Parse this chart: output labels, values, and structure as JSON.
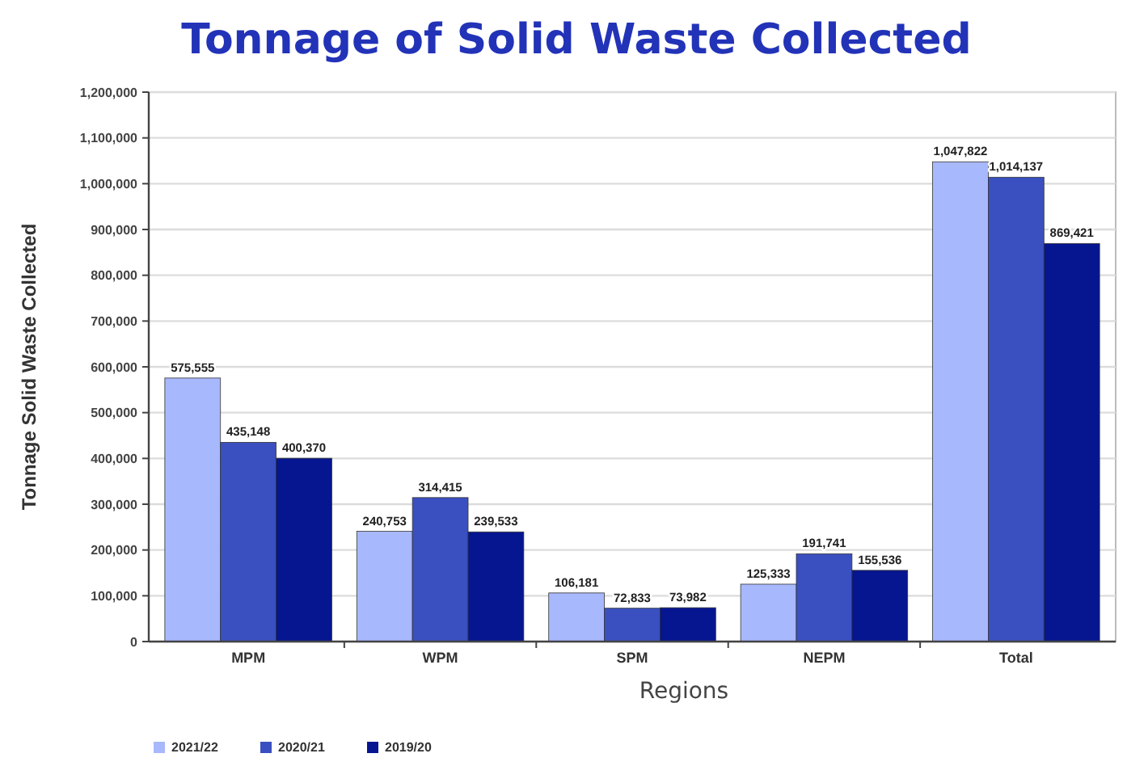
{
  "chart_data": {
    "type": "bar",
    "title": "Tonnage of Solid Waste Collected",
    "xlabel": "Regions",
    "ylabel": "Tonnage Solid Waste Collected",
    "categories": [
      "MPM",
      "WPM",
      "SPM",
      "NEPM",
      "Total"
    ],
    "series": [
      {
        "name": "2021/22",
        "color": "#a8b8fc",
        "values": [
          575555,
          240753,
          106181,
          125333,
          1047822
        ],
        "value_labels": [
          "575,555",
          "240,753",
          "106,181",
          "125,333",
          "1,047,822"
        ]
      },
      {
        "name": "2020/21",
        "color": "#3a50c0",
        "values": [
          435148,
          314415,
          72833,
          191741,
          1014137
        ],
        "value_labels": [
          "435,148",
          "314,415",
          "72,833",
          "191,741",
          "1,014,137"
        ]
      },
      {
        "name": "2019/20",
        "color": "#061590",
        "values": [
          400370,
          239533,
          73982,
          155536,
          869421
        ],
        "value_labels": [
          "400,370",
          "239,533",
          "73,982",
          "155,536",
          "869,421"
        ]
      }
    ],
    "ylim": [
      0,
      1200000
    ],
    "yticks": [
      {
        "value": 0,
        "label": "0"
      },
      {
        "value": 100000,
        "label": "100,000"
      },
      {
        "value": 200000,
        "label": "200,000"
      },
      {
        "value": 300000,
        "label": "300,000"
      },
      {
        "value": 400000,
        "label": "400,000"
      },
      {
        "value": 500000,
        "label": "500,000"
      },
      {
        "value": 600000,
        "label": "600,000"
      },
      {
        "value": 700000,
        "label": "700,000"
      },
      {
        "value": 800000,
        "label": "800,000"
      },
      {
        "value": 900000,
        "label": "900,000"
      },
      {
        "value": 1000000,
        "label": "1,000,000"
      },
      {
        "value": 1100000,
        "label": "1,100,000"
      },
      {
        "value": 1200000,
        "label": "1,200,000"
      }
    ],
    "grid": "y",
    "legend": "bottom left"
  }
}
